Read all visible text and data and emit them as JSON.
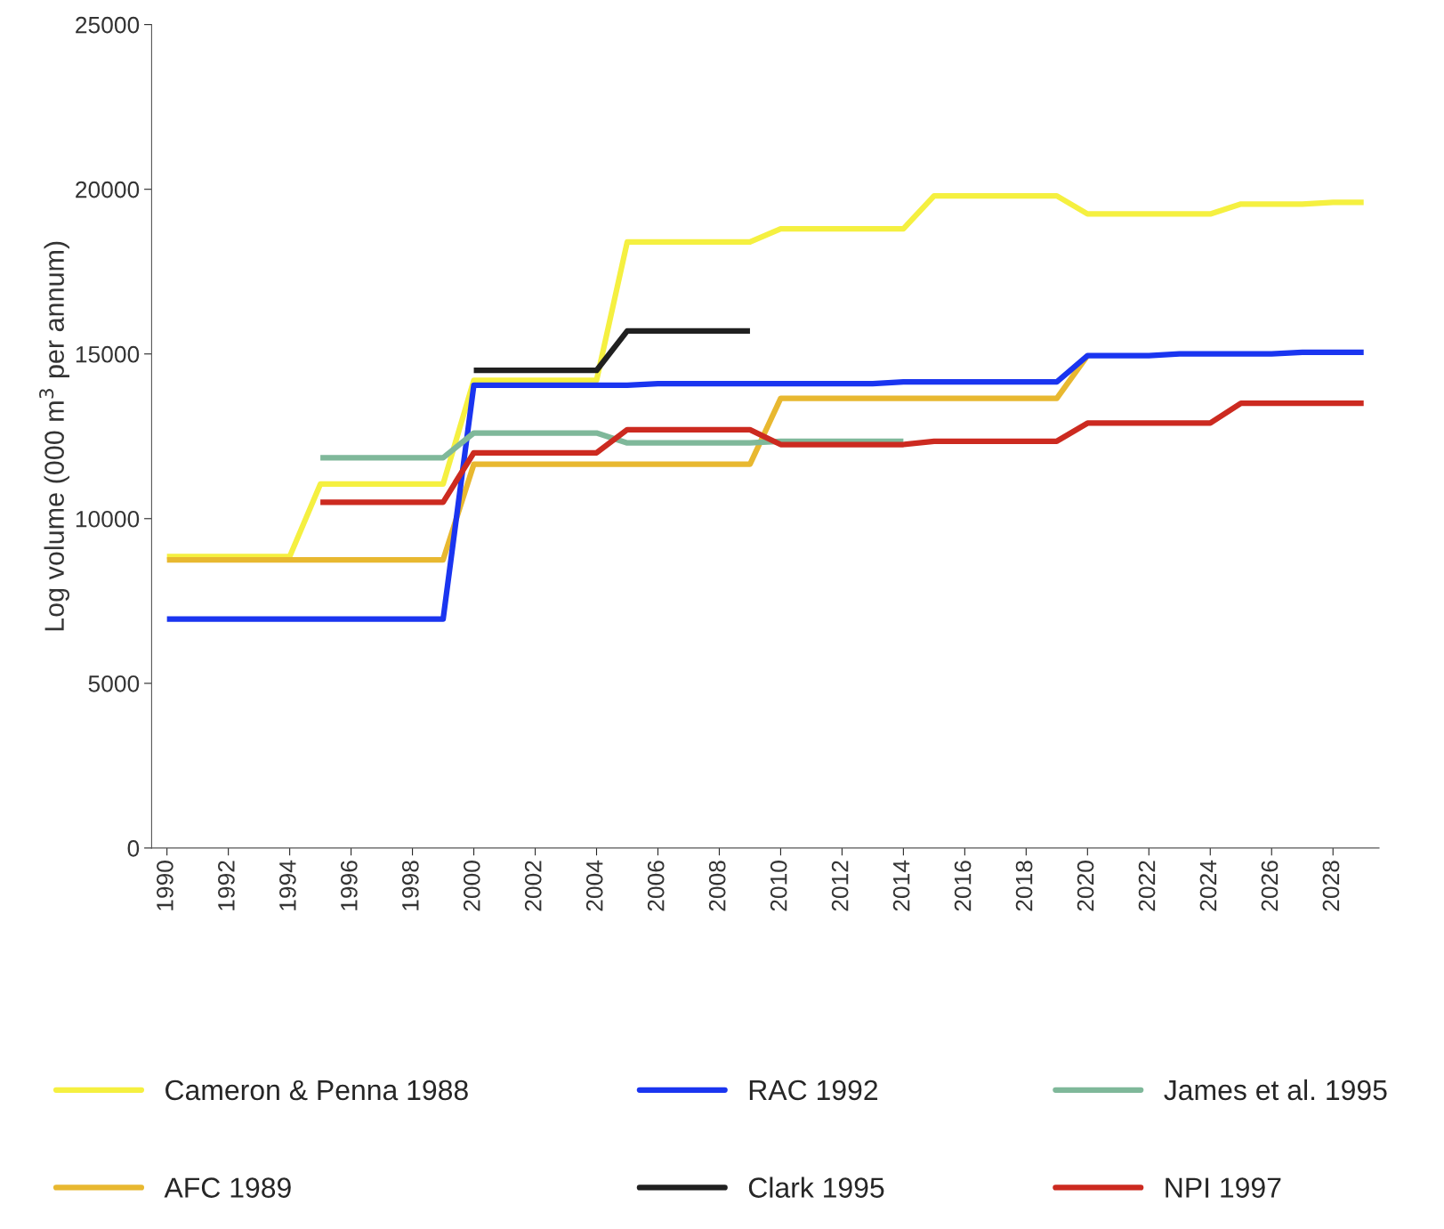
{
  "chart_data": {
    "type": "line",
    "ylabel": "Log volume (000 m$^{3}$ per annum)",
    "xlim": [
      1989.5,
      2029.5
    ],
    "xticks": [
      1990,
      1992,
      1994,
      1996,
      1998,
      2000,
      2002,
      2004,
      2006,
      2008,
      2010,
      2012,
      2014,
      2016,
      2018,
      2020,
      2022,
      2024,
      2026,
      2028
    ],
    "ylim": [
      0,
      25000
    ],
    "yticks": [
      0,
      5000,
      10000,
      15000,
      20000,
      25000
    ],
    "grid": false,
    "legend": "bottom",
    "marker": "none",
    "line_style": "solid",
    "series": [
      {
        "name": "Cameron & Penna 1988",
        "color": "#f5f040",
        "x": [
          1990,
          1991,
          1992,
          1993,
          1994,
          1995,
          1996,
          1997,
          1998,
          1999,
          2000,
          2001,
          2002,
          2003,
          2004,
          2005,
          2006,
          2007,
          2008,
          2009,
          2010,
          2011,
          2012,
          2013,
          2014,
          2015,
          2016,
          2017,
          2018,
          2019,
          2020,
          2021,
          2022,
          2023,
          2024,
          2025,
          2026,
          2027,
          2028,
          2029
        ],
        "values": [
          8850,
          8850,
          8850,
          8850,
          8850,
          11050,
          11050,
          11050,
          11050,
          11050,
          14200,
          14200,
          14200,
          14200,
          14200,
          18400,
          18400,
          18400,
          18400,
          18400,
          18800,
          18800,
          18800,
          18800,
          18800,
          19800,
          19800,
          19800,
          19800,
          19800,
          19250,
          19250,
          19250,
          19250,
          19250,
          19550,
          19550,
          19550,
          19600,
          19600
        ]
      },
      {
        "name": "AFC 1989",
        "color": "#e8b830",
        "x": [
          1990,
          1991,
          1992,
          1993,
          1994,
          1995,
          1996,
          1997,
          1998,
          1999,
          2000,
          2001,
          2002,
          2003,
          2004,
          2005,
          2006,
          2007,
          2008,
          2009,
          2010,
          2011,
          2012,
          2013,
          2014,
          2015,
          2016,
          2017,
          2018,
          2019,
          2020
        ],
        "values": [
          8750,
          8750,
          8750,
          8750,
          8750,
          8750,
          8750,
          8750,
          8750,
          8750,
          11650,
          11650,
          11650,
          11650,
          11650,
          11650,
          11650,
          11650,
          11650,
          11650,
          13650,
          13650,
          13650,
          13650,
          13650,
          13650,
          13650,
          13650,
          13650,
          13650,
          14950
        ]
      },
      {
        "name": "RAC 1992",
        "color": "#1a35f0",
        "x": [
          1990,
          1991,
          1992,
          1993,
          1994,
          1995,
          1996,
          1997,
          1998,
          1999,
          2000,
          2001,
          2002,
          2003,
          2004,
          2005,
          2006,
          2007,
          2008,
          2009,
          2010,
          2011,
          2012,
          2013,
          2014,
          2015,
          2016,
          2017,
          2018,
          2019,
          2020,
          2021,
          2022,
          2023,
          2024,
          2025,
          2026,
          2027,
          2028,
          2029
        ],
        "values": [
          6950,
          6950,
          6950,
          6950,
          6950,
          6950,
          6950,
          6950,
          6950,
          6950,
          14050,
          14050,
          14050,
          14050,
          14050,
          14050,
          14100,
          14100,
          14100,
          14100,
          14100,
          14100,
          14100,
          14100,
          14150,
          14150,
          14150,
          14150,
          14150,
          14150,
          14950,
          14950,
          14950,
          15000,
          15000,
          15000,
          15000,
          15050,
          15050,
          15050
        ]
      },
      {
        "name": "Clark 1995",
        "color": "#202020",
        "x": [
          2000,
          2001,
          2002,
          2003,
          2004,
          2005,
          2006,
          2007,
          2008,
          2009
        ],
        "values": [
          14500,
          14500,
          14500,
          14500,
          14500,
          15700,
          15700,
          15700,
          15700,
          15700
        ]
      },
      {
        "name": "James et al. 1995",
        "color": "#7fb89a",
        "x": [
          1995,
          1996,
          1997,
          1998,
          1999,
          2000,
          2001,
          2002,
          2003,
          2004,
          2005,
          2006,
          2007,
          2008,
          2009,
          2010,
          2011,
          2012,
          2013,
          2014
        ],
        "values": [
          11850,
          11850,
          11850,
          11850,
          11850,
          12600,
          12600,
          12600,
          12600,
          12600,
          12300,
          12300,
          12300,
          12300,
          12300,
          12350,
          12350,
          12350,
          12350,
          12350
        ]
      },
      {
        "name": "NPI 1997",
        "color": "#cc2a20",
        "x": [
          1995,
          1996,
          1997,
          1998,
          1999,
          2000,
          2001,
          2002,
          2003,
          2004,
          2005,
          2006,
          2007,
          2008,
          2009,
          2010,
          2011,
          2012,
          2013,
          2014,
          2015,
          2016,
          2017,
          2018,
          2019,
          2020,
          2021,
          2022,
          2023,
          2024,
          2025,
          2026,
          2027,
          2028,
          2029
        ],
        "values": [
          10500,
          10500,
          10500,
          10500,
          10500,
          12000,
          12000,
          12000,
          12000,
          12000,
          12700,
          12700,
          12700,
          12700,
          12700,
          12250,
          12250,
          12250,
          12250,
          12250,
          12350,
          12350,
          12350,
          12350,
          12350,
          12900,
          12900,
          12900,
          12900,
          12900,
          13500,
          13500,
          13500,
          13500,
          13500
        ]
      }
    ]
  }
}
